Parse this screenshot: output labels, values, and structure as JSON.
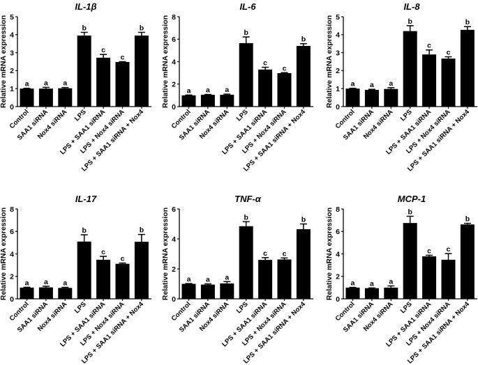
{
  "chart_data": [
    {
      "type": "bar",
      "title": "IL-1β",
      "xlabel": "",
      "ylabel": "Relative mRNA expression",
      "ylim": [
        0,
        5
      ],
      "yticks": [
        0,
        1,
        2,
        3,
        4,
        5
      ],
      "categories": [
        "Control",
        "SAA1 siRNA",
        "Nox4 siRNA",
        "LPS",
        "LPS + SAA1 siRNA",
        "LPS + Nox4 siRNA",
        "LPS + SAA1 siRNA + Nox4"
      ],
      "values": [
        1.0,
        1.0,
        1.02,
        3.95,
        2.72,
        2.48,
        3.95
      ],
      "errors": [
        0.02,
        0.07,
        0.04,
        0.18,
        0.18,
        0.02,
        0.18
      ],
      "significance": [
        "a",
        "a",
        "a",
        "b",
        "c",
        "c",
        "b"
      ],
      "grid": false
    },
    {
      "type": "bar",
      "title": "IL-6",
      "xlabel": "",
      "ylabel": "Relative mRNA expression",
      "ylim": [
        0,
        8
      ],
      "yticks": [
        0,
        2,
        4,
        6,
        8
      ],
      "categories": [
        "Control",
        "SAA1 siRNA",
        "Nox4 siRNA",
        "LPS",
        "LPS + SAA1 siRNA",
        "LPS + Nox4 siRNA",
        "LPS + SAA1 siRNA + Nox4"
      ],
      "values": [
        1.0,
        1.05,
        1.05,
        5.65,
        3.3,
        2.98,
        5.4
      ],
      "errors": [
        0.03,
        0.03,
        0.06,
        0.55,
        0.2,
        0.04,
        0.2
      ],
      "significance": [
        "a",
        "a",
        "a",
        "b",
        "c",
        "c",
        "b"
      ],
      "grid": false
    },
    {
      "type": "bar",
      "title": "IL-8",
      "xlabel": "",
      "ylabel": "Relative mRNA expression",
      "ylim": [
        0,
        5
      ],
      "yticks": [
        0,
        1,
        2,
        3,
        4,
        5
      ],
      "categories": [
        "Control",
        "SAA1 siRNA",
        "Nox4 siRNA",
        "LPS",
        "LPS + SAA1 siRNA",
        "LPS + Nox4 siRNA",
        "LPS + SAA1 siRNA + Nox4"
      ],
      "values": [
        1.0,
        0.93,
        0.98,
        4.2,
        2.9,
        2.67,
        4.27
      ],
      "errors": [
        0.02,
        0.03,
        0.07,
        0.3,
        0.25,
        0.1,
        0.18
      ],
      "significance": [
        "a",
        "a",
        "a",
        "b",
        "c",
        "c",
        "b"
      ],
      "grid": false
    },
    {
      "type": "bar",
      "title": "IL-17",
      "xlabel": "",
      "ylabel": "Relative mRNA expression",
      "ylim": [
        0,
        8
      ],
      "yticks": [
        0,
        2,
        4,
        6,
        8
      ],
      "categories": [
        "Control",
        "SAA1 siRNA",
        "Nox4 siRNA",
        "LPS",
        "LPS + SAA1 siRNA",
        "LPS + Nox4 siRNA",
        "LPS + SAA1 siRNA + Nox4"
      ],
      "values": [
        1.0,
        1.02,
        0.97,
        5.1,
        3.48,
        3.12,
        5.08
      ],
      "errors": [
        0.03,
        0.1,
        0.05,
        0.6,
        0.3,
        0.07,
        0.65
      ],
      "significance": [
        "a",
        "a",
        "a",
        "b",
        "c",
        "c",
        "b"
      ],
      "grid": false
    },
    {
      "type": "bar",
      "title": "TNF-α",
      "xlabel": "",
      "ylabel": "Relative mRNA expression",
      "ylim": [
        0,
        6
      ],
      "yticks": [
        0,
        2,
        4,
        6
      ],
      "categories": [
        "Control",
        "SAA1 siRNA",
        "Nox4 siRNA",
        "LPS",
        "LPS + SAA1 siRNA",
        "LPS + Nox4 siRNA",
        "LPS + SAA1 siRNA + Nox4"
      ],
      "values": [
        1.0,
        0.95,
        1.03,
        4.85,
        2.6,
        2.63,
        4.65
      ],
      "errors": [
        0.02,
        0.05,
        0.12,
        0.3,
        0.15,
        0.1,
        0.35
      ],
      "significance": [
        "a",
        "a",
        "a",
        "b",
        "c",
        "c",
        "b"
      ],
      "grid": false
    },
    {
      "type": "bar",
      "title": "MCP-1",
      "xlabel": "",
      "ylabel": "Relative mRNA expression",
      "ylim": [
        0,
        8
      ],
      "yticks": [
        0,
        2,
        4,
        6,
        8
      ],
      "categories": [
        "Control",
        "SAA1 siRNA",
        "Nox4 siRNA",
        "LPS",
        "LPS + SAA1 siRNA",
        "LPS + Nox4 siRNA",
        "LPS + SAA1 siRNA + Nox4"
      ],
      "values": [
        1.0,
        0.95,
        1.0,
        6.75,
        3.78,
        3.48,
        6.62
      ],
      "errors": [
        0.02,
        0.02,
        0.15,
        0.6,
        0.1,
        0.55,
        0.1
      ],
      "significance": [
        "a",
        "a",
        "a",
        "b",
        "c",
        "c",
        "b"
      ],
      "grid": false
    }
  ]
}
